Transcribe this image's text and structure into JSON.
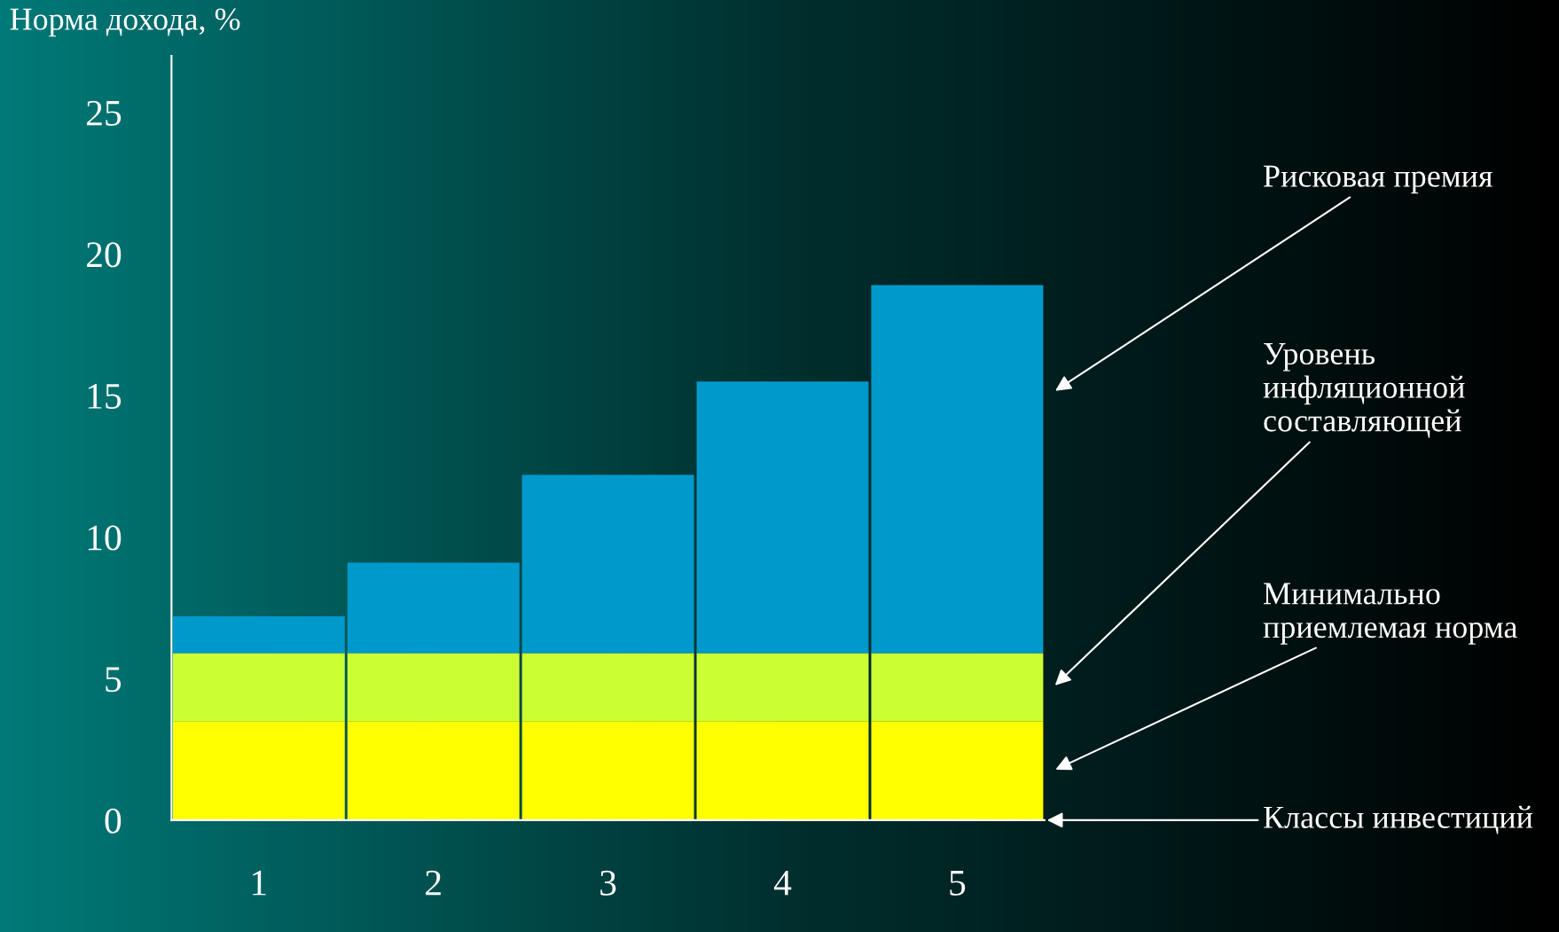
{
  "chart_data": {
    "type": "bar",
    "stacked": true,
    "ylabel": "Норма дохода, %",
    "annotations": [
      "Классы инвестиций"
    ],
    "categories": [
      "1",
      "2",
      "3",
      "4",
      "5"
    ],
    "series": [
      {
        "name": "Минимально приемлемая норма",
        "color": "#ffff00",
        "values": [
          3.5,
          3.5,
          3.5,
          3.5,
          3.5
        ]
      },
      {
        "name": "Уровень инфляционной составляющей",
        "color": "#ccff33",
        "values": [
          2.4,
          2.4,
          2.4,
          2.4,
          2.4
        ]
      },
      {
        "name": "Рисковая премия",
        "color": "#0099cc",
        "values": [
          1.3,
          3.2,
          6.3,
          9.6,
          13.0
        ]
      }
    ],
    "ylim": [
      0,
      27
    ],
    "yticks": [
      0,
      5,
      10,
      15,
      20,
      25
    ],
    "grid": false,
    "legend": false
  }
}
